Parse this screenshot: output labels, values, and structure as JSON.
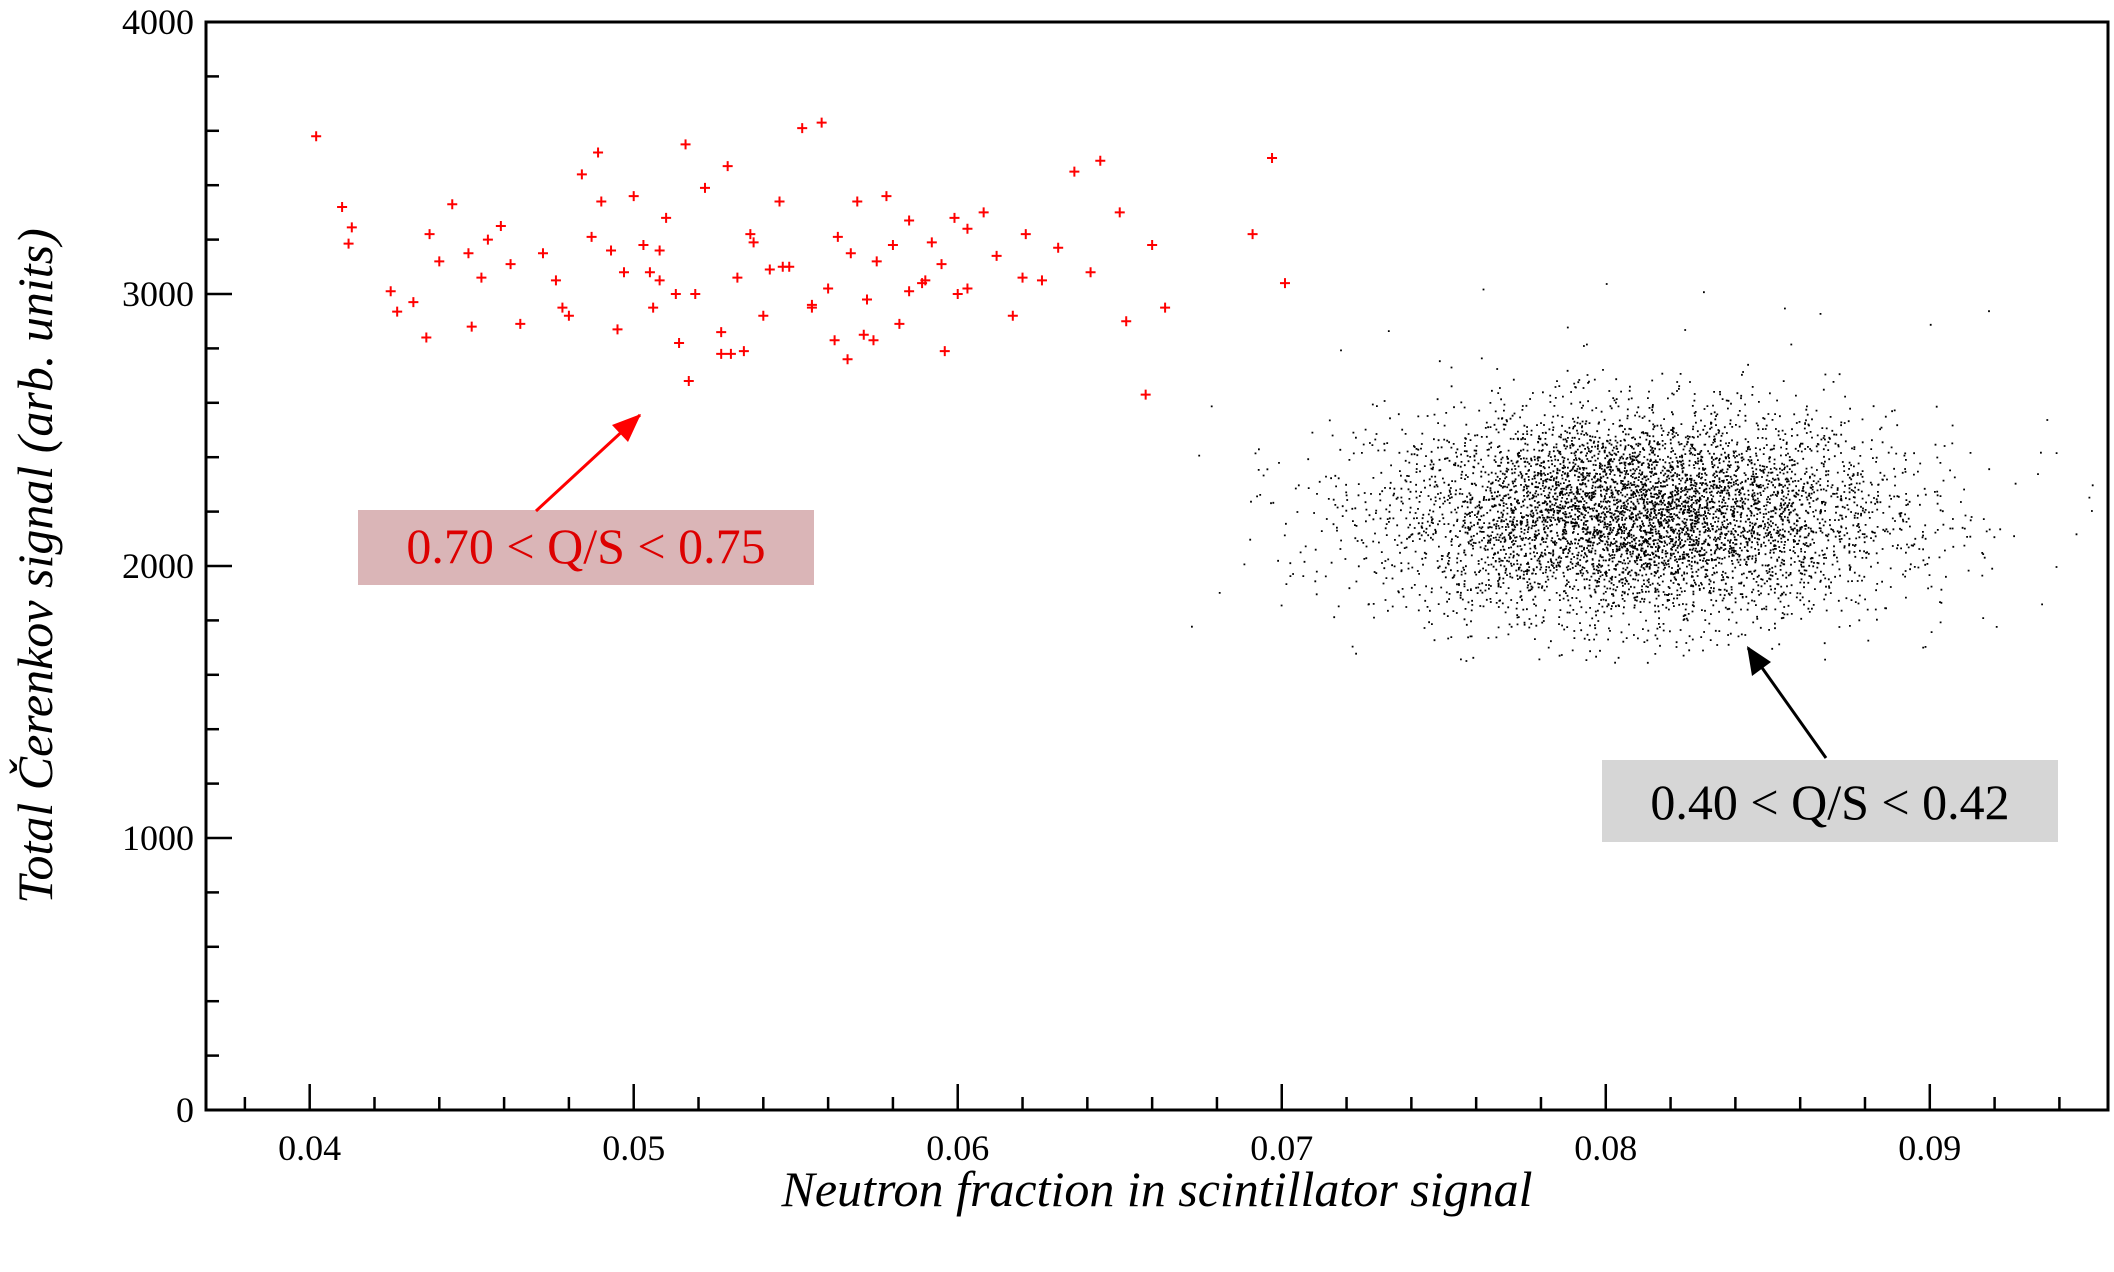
{
  "chart_data": {
    "type": "scatter",
    "title": "",
    "xlabel": "Neutron fraction in scintillator signal",
    "ylabel": "Total Čerenkov signal (arb. units)",
    "xlim": [
      0.0368,
      0.0955
    ],
    "ylim": [
      0,
      4000
    ],
    "x_ticks": [
      "0.04",
      "0.05",
      "0.06",
      "0.07",
      "0.08",
      "0.09"
    ],
    "y_ticks": [
      "0",
      "1000",
      "2000",
      "3000",
      "4000"
    ],
    "grid": false,
    "series": [
      {
        "marker": "plus",
        "color": "#ff0000",
        "x": [
          0.0402,
          0.041,
          0.0412,
          0.0413,
          0.0425,
          0.0427,
          0.0432,
          0.0436,
          0.0437,
          0.044,
          0.0444,
          0.0449,
          0.045,
          0.0453,
          0.0455,
          0.0459,
          0.0462,
          0.0465,
          0.0472,
          0.0476,
          0.0478,
          0.0484,
          0.0487,
          0.0489,
          0.049,
          0.0493,
          0.0497,
          0.05,
          0.0503,
          0.0506,
          0.0508,
          0.051,
          0.0514,
          0.0516,
          0.0519,
          0.0522,
          0.0527,
          0.0529,
          0.0532,
          0.0534,
          0.0537,
          0.054,
          0.0545,
          0.0548,
          0.0552,
          0.0555,
          0.0558,
          0.056,
          0.0563,
          0.0566,
          0.0569,
          0.0572,
          0.0575,
          0.0578,
          0.0582,
          0.0585,
          0.0589,
          0.0592,
          0.0596,
          0.0599,
          0.0603,
          0.0608,
          0.0612,
          0.0617,
          0.0621,
          0.0626,
          0.0631,
          0.0636,
          0.0641,
          0.0644,
          0.065,
          0.0652,
          0.0658,
          0.066,
          0.0664,
          0.0691,
          0.0697,
          0.0701,
          0.0505,
          0.0513,
          0.0536,
          0.0555,
          0.0527,
          0.0546,
          0.0571,
          0.059,
          0.0517,
          0.0562,
          0.058,
          0.0595,
          0.048,
          0.0495,
          0.053,
          0.0567,
          0.0585,
          0.0603,
          0.062,
          0.0508,
          0.0542,
          0.0574,
          0.06
        ],
        "y": [
          3580,
          3320,
          3185,
          3245,
          3010,
          2935,
          2970,
          2840,
          3220,
          3120,
          3330,
          3150,
          2880,
          3060,
          3200,
          3250,
          3110,
          2890,
          3150,
          3050,
          2950,
          3440,
          3210,
          3520,
          3340,
          3160,
          3080,
          3360,
          3180,
          2950,
          3050,
          3280,
          2820,
          3550,
          3000,
          3390,
          2860,
          3470,
          3060,
          2790,
          3190,
          2920,
          3340,
          3100,
          3610,
          2960,
          3630,
          3020,
          3210,
          2760,
          3340,
          2980,
          3120,
          3360,
          2890,
          3270,
          3040,
          3190,
          2790,
          3280,
          3020,
          3300,
          3140,
          2920,
          3220,
          3050,
          3170,
          3450,
          3080,
          3490,
          3300,
          2900,
          2630,
          3180,
          2950,
          3220,
          3500,
          3040,
          3080,
          3000,
          3220,
          2950,
          2780,
          3100,
          2850,
          3050,
          2680,
          2830,
          3180,
          3110,
          2920,
          2870,
          2780,
          3150,
          3010,
          3240,
          3060,
          3160,
          3090,
          2830,
          3000
        ]
      },
      {
        "marker": "dot",
        "color": "#000000",
        "n_points": 6000,
        "x_center": 0.081,
        "x_sd": 0.0039,
        "y_center": 2190,
        "y_sd": 190,
        "x_range": [
          0.0668,
          0.095
        ],
        "y_range": [
          1640,
          2920
        ],
        "outliers_x": [
          0.0672,
          0.069,
          0.0705,
          0.0725,
          0.0762,
          0.0788,
          0.08,
          0.083,
          0.0855,
          0.0866,
          0.09,
          0.0918,
          0.0936,
          0.095,
          0.0934,
          0.0945,
          0.087,
          0.0893,
          0.0815,
          0.0755
        ],
        "outliers_y": [
          1780,
          2100,
          2300,
          2450,
          3020,
          2880,
          3040,
          3010,
          2950,
          2930,
          2890,
          2940,
          2540,
          2300,
          2420,
          2120,
          2680,
          2230,
          1680,
          1660
        ]
      }
    ],
    "annotations": [
      {
        "text": "0.70 < Q/S < 0.75",
        "color": "#dd0000",
        "box_color": "#dab5b7",
        "arrow_to": [
          0.0505,
          2560
        ],
        "arrow_from": [
          0.045,
          2160
        ]
      },
      {
        "text": "0.40 < Q/S < 0.42",
        "color": "#000000",
        "box_color": "#d6d6d6",
        "arrow_to": [
          0.0846,
          1700
        ],
        "arrow_from": [
          0.087,
          1280
        ]
      }
    ]
  },
  "labels": {
    "annotation_red": "0.70 < Q/S < 0.75",
    "annotation_black": "0.40 < Q/S < 0.42"
  }
}
